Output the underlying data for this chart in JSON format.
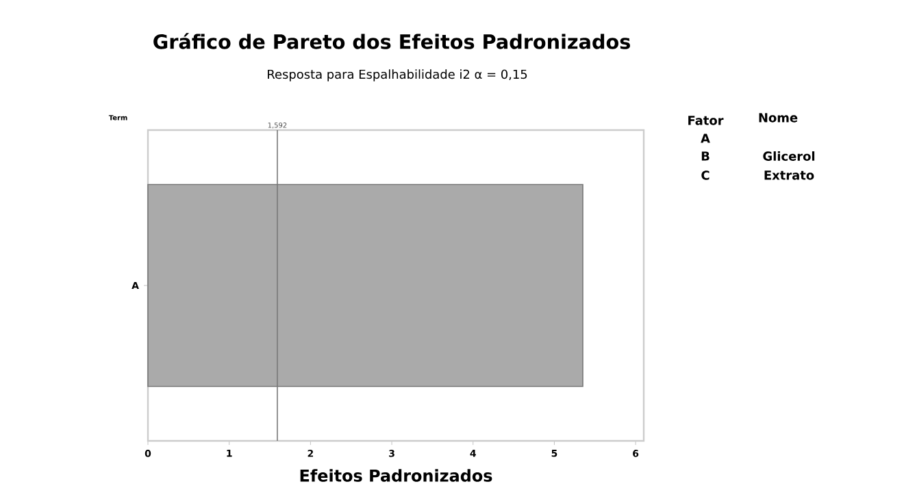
{
  "chart_data": {
    "type": "bar",
    "orientation": "horizontal",
    "title": "Gráfico de Pareto dos Efeitos Padronizados",
    "subtitle": "Resposta para Espalhabilidade i2 α = 0,15",
    "xlabel": "Efeitos Padronizados",
    "ylabel": "Term",
    "categories": [
      "A"
    ],
    "values": [
      5.35
    ],
    "color": "#aaaaaa",
    "xlim": [
      0,
      6.1
    ],
    "xticks": [
      0,
      1,
      2,
      3,
      4,
      5,
      6
    ],
    "ref_lines": [
      {
        "axis": "x",
        "value": 1.592,
        "label": "1,592",
        "color": "#777777"
      }
    ],
    "annotations": [
      "Fator",
      "Nome",
      "A",
      "B",
      "Glicerol",
      "C",
      "Extrato"
    ]
  }
}
